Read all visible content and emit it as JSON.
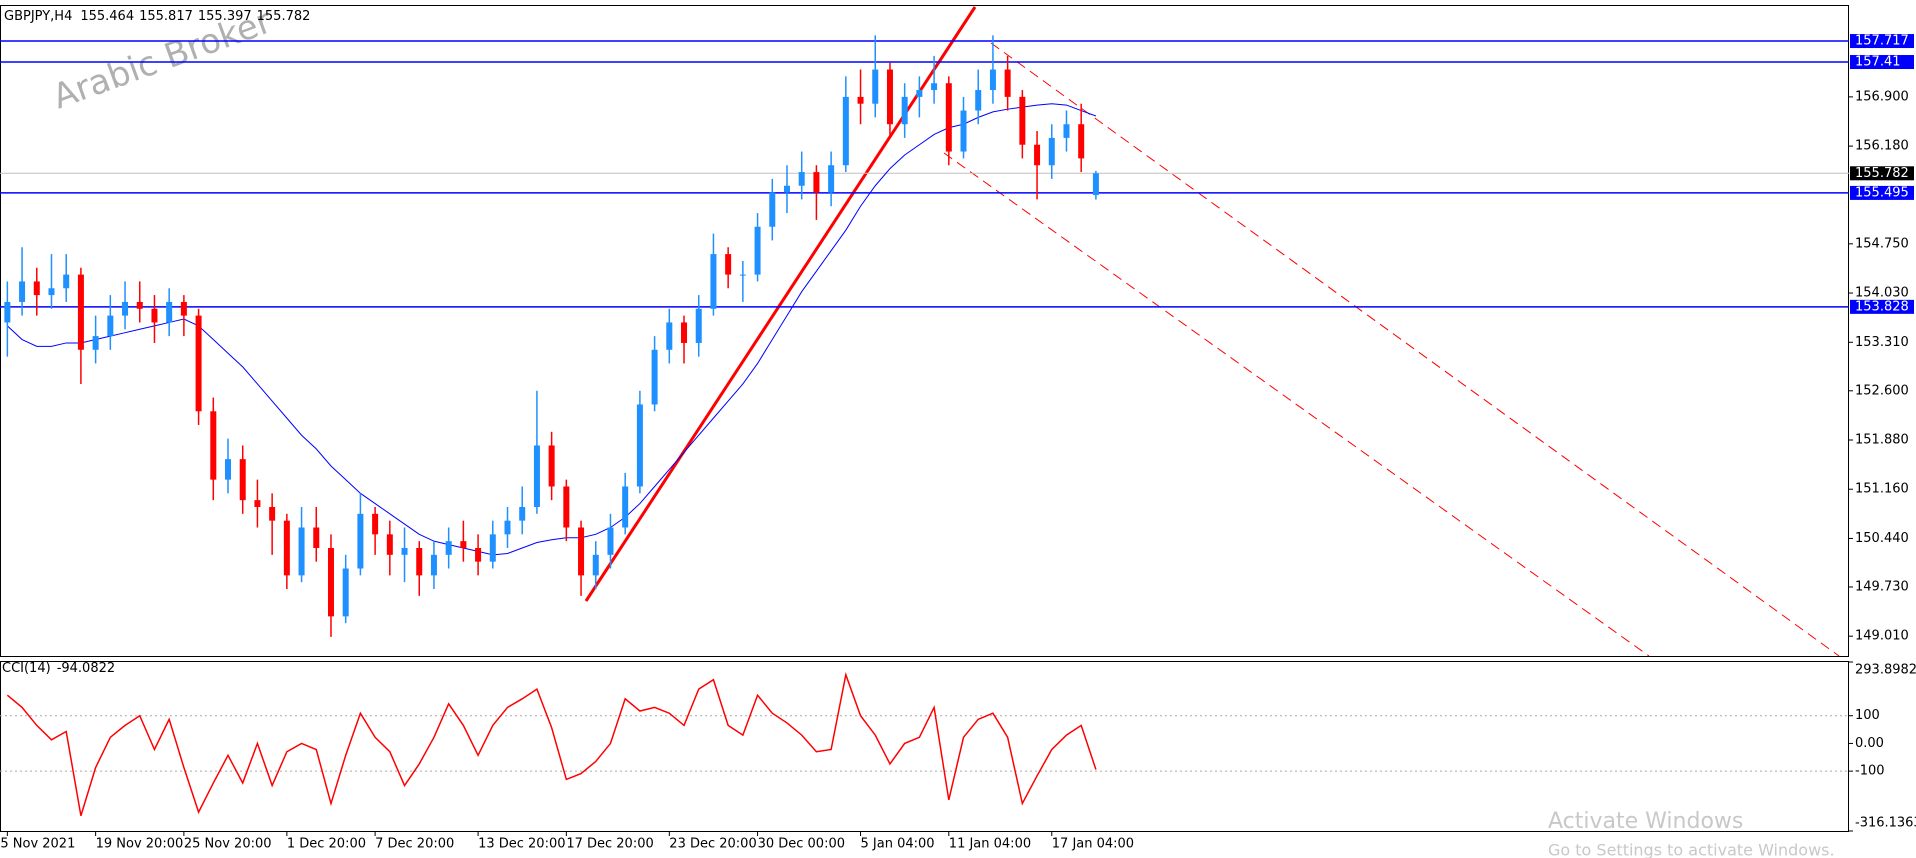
{
  "chart_data": {
    "type": "candlestick",
    "symbol": "GBPJPY,H4",
    "watermark": "Arabic Broker",
    "bull_color": "#1e90ff",
    "bear_color": "#ff0000",
    "ma_color": "#0000ff",
    "level_color": "#0000ff",
    "cci_color": "#ff0000",
    "ylim": [
      148.72,
      158.215
    ],
    "yticks": [
      {
        "value": 149.01,
        "label": "149.010"
      },
      {
        "value": 149.73,
        "label": "149.730"
      },
      {
        "value": 150.44,
        "label": "150.440"
      },
      {
        "value": 151.16,
        "label": "151.160"
      },
      {
        "value": 151.88,
        "label": "151.880"
      },
      {
        "value": 152.6,
        "label": "152.600"
      },
      {
        "value": 153.31,
        "label": "153.310"
      },
      {
        "value": 154.03,
        "label": "154.030"
      },
      {
        "value": 154.75,
        "label": "154.750"
      },
      {
        "value": 156.18,
        "label": "156.180"
      },
      {
        "value": 156.9,
        "label": "156.900"
      }
    ],
    "levels": [
      157.717,
      157.41,
      155.495,
      153.828
    ],
    "categories": [
      "5 Nov 2021",
      null,
      null,
      null,
      null,
      null,
      "19 Nov 20:00",
      null,
      null,
      null,
      null,
      null,
      "25 Nov 20:00",
      null,
      null,
      null,
      null,
      null,
      null,
      "1 Dec 20:00",
      null,
      null,
      null,
      null,
      null,
      "7 Dec 20:00",
      null,
      null,
      null,
      null,
      null,
      null,
      "13 Dec 20:00",
      null,
      null,
      null,
      null,
      null,
      "17 Dec 20:00",
      null,
      null,
      null,
      null,
      null,
      null,
      "23 Dec 20:00",
      null,
      null,
      null,
      null,
      null,
      "30 Dec 00:00",
      null,
      null,
      null,
      null,
      null,
      null,
      "5 Jan 04:00",
      null,
      null,
      null,
      null,
      null,
      "11 Jan 04:00",
      null,
      null,
      null,
      null,
      null,
      null,
      "17 Jan 04:00",
      null,
      null,
      null
    ],
    "candles": [
      [
        153.6,
        154.2,
        153.1,
        153.9
      ],
      [
        153.9,
        154.7,
        153.7,
        154.2
      ],
      [
        154.2,
        154.4,
        153.7,
        154.0
      ],
      [
        154.0,
        154.6,
        153.8,
        154.1
      ],
      [
        154.1,
        154.6,
        153.9,
        154.3
      ],
      [
        154.3,
        154.4,
        152.7,
        153.2
      ],
      [
        153.2,
        153.7,
        153.0,
        153.4
      ],
      [
        153.4,
        154.0,
        153.2,
        153.7
      ],
      [
        153.7,
        154.2,
        153.5,
        153.9
      ],
      [
        153.9,
        154.2,
        153.6,
        153.8
      ],
      [
        153.8,
        154.0,
        153.3,
        153.6
      ],
      [
        153.6,
        154.1,
        153.4,
        153.9
      ],
      [
        153.9,
        154.0,
        153.4,
        153.7
      ],
      [
        153.7,
        153.8,
        152.1,
        152.3
      ],
      [
        152.3,
        152.5,
        151.0,
        151.3
      ],
      [
        151.3,
        151.9,
        151.1,
        151.6
      ],
      [
        151.6,
        151.8,
        150.8,
        151.0
      ],
      [
        151.0,
        151.3,
        150.6,
        150.9
      ],
      [
        150.9,
        151.1,
        150.2,
        150.7
      ],
      [
        150.7,
        150.8,
        149.7,
        149.9
      ],
      [
        149.9,
        150.9,
        149.8,
        150.6
      ],
      [
        150.6,
        150.9,
        150.1,
        150.3
      ],
      [
        150.3,
        150.5,
        149.0,
        149.3
      ],
      [
        149.3,
        150.2,
        149.2,
        150.0
      ],
      [
        150.0,
        151.1,
        149.9,
        150.8
      ],
      [
        150.8,
        150.9,
        150.2,
        150.5
      ],
      [
        150.5,
        150.7,
        149.9,
        150.2
      ],
      [
        150.2,
        150.6,
        149.8,
        150.3
      ],
      [
        150.3,
        150.4,
        149.6,
        149.9
      ],
      [
        149.9,
        150.4,
        149.7,
        150.2
      ],
      [
        150.2,
        150.6,
        150.0,
        150.4
      ],
      [
        150.4,
        150.7,
        150.1,
        150.3
      ],
      [
        150.3,
        150.5,
        149.9,
        150.1
      ],
      [
        150.1,
        150.7,
        150.0,
        150.5
      ],
      [
        150.5,
        150.9,
        150.3,
        150.7
      ],
      [
        150.7,
        151.2,
        150.5,
        150.9
      ],
      [
        150.9,
        152.6,
        150.8,
        151.8
      ],
      [
        151.8,
        152.0,
        151.0,
        151.2
      ],
      [
        151.2,
        151.3,
        150.4,
        150.6
      ],
      [
        150.6,
        150.7,
        149.6,
        149.9
      ],
      [
        149.9,
        150.4,
        149.7,
        150.2
      ],
      [
        150.2,
        150.8,
        150.0,
        150.6
      ],
      [
        150.6,
        151.4,
        150.5,
        151.2
      ],
      [
        151.2,
        152.6,
        151.1,
        152.4
      ],
      [
        152.4,
        153.4,
        152.3,
        153.2
      ],
      [
        153.2,
        153.8,
        153.0,
        153.6
      ],
      [
        153.6,
        153.7,
        153.0,
        153.3
      ],
      [
        153.3,
        154.0,
        153.1,
        153.8
      ],
      [
        153.8,
        154.9,
        153.7,
        154.6
      ],
      [
        154.6,
        154.7,
        154.1,
        154.3
      ],
      [
        154.3,
        154.5,
        153.9,
        154.3
      ],
      [
        154.3,
        155.2,
        154.2,
        155.0
      ],
      [
        155.0,
        155.7,
        154.8,
        155.5
      ],
      [
        155.5,
        155.9,
        155.2,
        155.6
      ],
      [
        155.6,
        156.1,
        155.4,
        155.8
      ],
      [
        155.8,
        155.9,
        155.1,
        155.5
      ],
      [
        155.5,
        156.1,
        155.3,
        155.9
      ],
      [
        155.9,
        157.2,
        155.8,
        156.9
      ],
      [
        156.9,
        157.3,
        156.5,
        156.8
      ],
      [
        156.8,
        157.8,
        156.6,
        157.3
      ],
      [
        157.3,
        157.4,
        156.3,
        156.5
      ],
      [
        156.5,
        157.1,
        156.3,
        156.9
      ],
      [
        156.9,
        157.2,
        156.6,
        157.0
      ],
      [
        157.0,
        157.5,
        156.8,
        157.1
      ],
      [
        157.1,
        157.2,
        155.9,
        156.1
      ],
      [
        156.1,
        156.9,
        156.0,
        156.7
      ],
      [
        156.7,
        157.3,
        156.5,
        157.0
      ],
      [
        157.0,
        157.8,
        156.8,
        157.3
      ],
      [
        157.3,
        157.5,
        156.7,
        156.9
      ],
      [
        156.9,
        157.0,
        156.0,
        156.2
      ],
      [
        156.2,
        156.4,
        155.4,
        155.9
      ],
      [
        155.9,
        156.5,
        155.7,
        156.3
      ],
      [
        156.3,
        156.7,
        156.1,
        156.5
      ],
      [
        156.5,
        156.8,
        155.8,
        156.0
      ],
      [
        155.464,
        155.817,
        155.397,
        155.782
      ]
    ],
    "ma": [
      153.55,
      153.35,
      153.25,
      153.25,
      153.3,
      153.3,
      153.35,
      153.4,
      153.45,
      153.5,
      153.55,
      153.6,
      153.65,
      153.55,
      153.35,
      153.15,
      152.95,
      152.7,
      152.45,
      152.2,
      151.95,
      151.75,
      151.5,
      151.3,
      151.1,
      150.95,
      150.8,
      150.65,
      150.5,
      150.4,
      150.35,
      150.3,
      150.25,
      150.2,
      150.22,
      150.3,
      150.38,
      150.42,
      150.45,
      150.45,
      150.5,
      150.6,
      150.75,
      150.95,
      151.2,
      151.45,
      151.7,
      151.95,
      152.2,
      152.45,
      152.7,
      153.0,
      153.35,
      153.7,
      154.05,
      154.35,
      154.65,
      154.95,
      155.3,
      155.6,
      155.85,
      156.05,
      156.2,
      156.35,
      156.45,
      156.5,
      156.6,
      156.68,
      156.72,
      156.75,
      156.78,
      156.8,
      156.78,
      156.7,
      156.62
    ],
    "cci_name": "CCI(14)",
    "cci": [
      174,
      130,
      65,
      13,
      43,
      -261,
      -87,
      22,
      65,
      100,
      -22,
      87,
      -87,
      -248,
      -143,
      -43,
      -143,
      0,
      -152,
      -30,
      0,
      -22,
      -217,
      -43,
      109,
      22,
      -30,
      -152,
      -74,
      22,
      143,
      65,
      -43,
      65,
      130,
      161,
      196,
      57,
      -130,
      -109,
      -65,
      0,
      161,
      117,
      130,
      109,
      65,
      196,
      230,
      65,
      30,
      174,
      109,
      74,
      30,
      -30,
      -22,
      248,
      100,
      30,
      -74,
      0,
      22,
      130,
      -204,
      22,
      87,
      109,
      22,
      -217,
      -117,
      -22,
      30,
      65,
      -94.0822
    ],
    "y2lim": [
      -316.1363,
      293.8982
    ],
    "y2ticks": [
      293.8982,
      100,
      {
        "value": 0,
        "label": "0.00"
      },
      -100,
      -316.1363
    ],
    "cci_levels": [
      100,
      -100
    ],
    "os_notice": [
      "Activate Windows",
      "Go to Settings to activate Windows."
    ]
  }
}
